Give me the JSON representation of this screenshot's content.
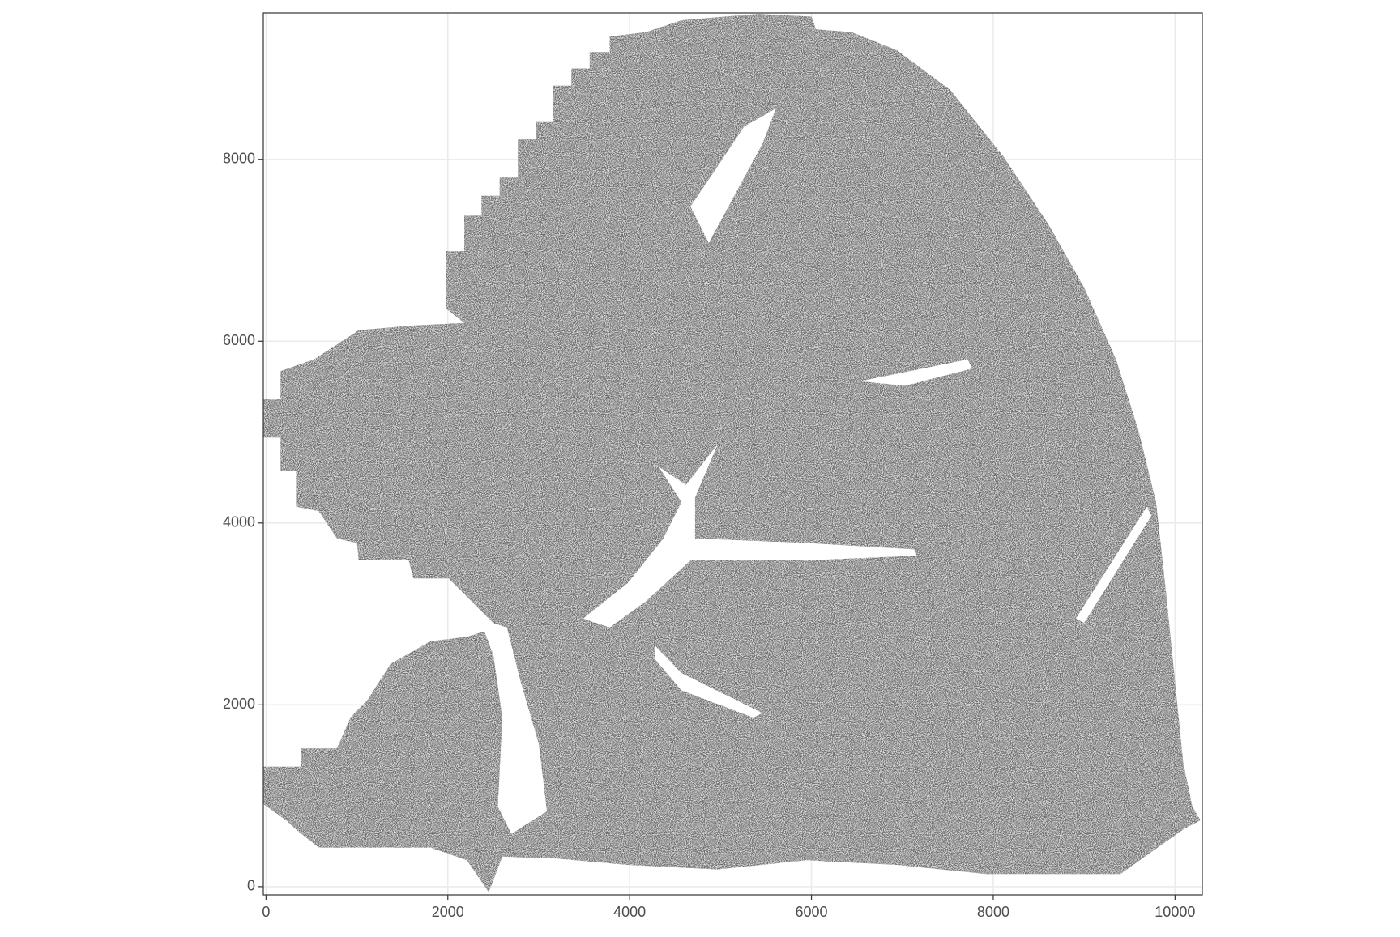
{
  "chart_data": {
    "type": "polygon",
    "color": "#6b6b6b",
    "xlim": [
      -30,
      10300
    ],
    "ylim": [
      -90,
      9610
    ],
    "xticks": [
      0,
      2000,
      4000,
      6000,
      8000,
      10000
    ],
    "yticks": [
      0,
      2000,
      4000,
      6000,
      8000
    ],
    "grid": true,
    "tissue": {
      "x": [
        5410,
        6000,
        6050,
        6440,
        6940,
        7530,
        8120,
        8610,
        9000,
        9350,
        9600,
        9790,
        9890,
        9990,
        10090,
        10190,
        10280,
        10090,
        9400,
        7920,
        6940,
        5950,
        4970,
        3980,
        3190,
        2600,
        2450,
        2210,
        1810,
        1020,
        580,
        330,
        220,
        -30,
        -30,
        380,
        380,
        780,
        930,
        1120,
        1370,
        1810,
        2210,
        2550,
        2210,
        2010,
        1620,
        1570,
        1020,
        1000,
        780,
        580,
        330,
        330,
        160,
        160,
        -30,
        -30,
        160,
        160,
        530,
        1020,
        1570,
        2180,
        1980,
        1980,
        2180,
        2180,
        2370,
        2370,
        2570,
        2570,
        2770,
        2770,
        2970,
        2970,
        3160,
        3160,
        3360,
        3360,
        3560,
        3560,
        3780,
        3780,
        4180,
        4570
      ],
      "y": [
        9600,
        9570,
        9430,
        9400,
        9200,
        8760,
        8020,
        7280,
        6590,
        5800,
        5010,
        4230,
        3340,
        2350,
        1370,
        880,
        730,
        630,
        140,
        140,
        240,
        290,
        190,
        240,
        310,
        330,
        -60,
        290,
        430,
        430,
        430,
        630,
        730,
        910,
        1320,
        1320,
        1520,
        1520,
        1860,
        2060,
        2450,
        2700,
        2750,
        2850,
        3190,
        3390,
        3390,
        3590,
        3590,
        3780,
        3830,
        4130,
        4180,
        4570,
        4570,
        4940,
        4940,
        5360,
        5360,
        5670,
        5800,
        6120,
        6170,
        6200,
        6360,
        6990,
        6990,
        7380,
        7380,
        7600,
        7600,
        7800,
        7800,
        8220,
        8220,
        8410,
        8410,
        8810,
        8810,
        9000,
        9000,
        9180,
        9180,
        9350,
        9400,
        9530
      ]
    },
    "holes": [
      {
        "x": [
          3490,
          3980,
          4370,
          4570,
          4320,
          4620,
          4970,
          4720,
          4720,
          5950,
          7130,
          7150,
          5950,
          4670,
          4180,
          3780
        ],
        "y": [
          2950,
          3340,
          3830,
          4230,
          4620,
          4420,
          4870,
          4280,
          3830,
          3780,
          3710,
          3640,
          3590,
          3590,
          3140,
          2850
        ]
      },
      {
        "x": [
          4280,
          4570,
          5460,
          5360,
          4570,
          4280
        ],
        "y": [
          2650,
          2350,
          1910,
          1860,
          2160,
          2500
        ]
      },
      {
        "x": [
          2350,
          2650,
          2800,
          3000,
          3090,
          2700,
          2550,
          2600,
          2500
        ],
        "y": [
          2950,
          2850,
          2260,
          1570,
          830,
          580,
          880,
          1860,
          2550
        ]
      },
      {
        "x": [
          4670,
          5260,
          5610,
          5460,
          4870
        ],
        "y": [
          7480,
          8360,
          8560,
          8170,
          7080
        ]
      },
      {
        "x": [
          8910,
          9690,
          9740,
          9000
        ],
        "y": [
          2950,
          4180,
          4080,
          2900
        ]
      },
      {
        "x": [
          6540,
          7720,
          7770,
          7030
        ],
        "y": [
          5560,
          5800,
          5700,
          5510
        ]
      }
    ]
  }
}
